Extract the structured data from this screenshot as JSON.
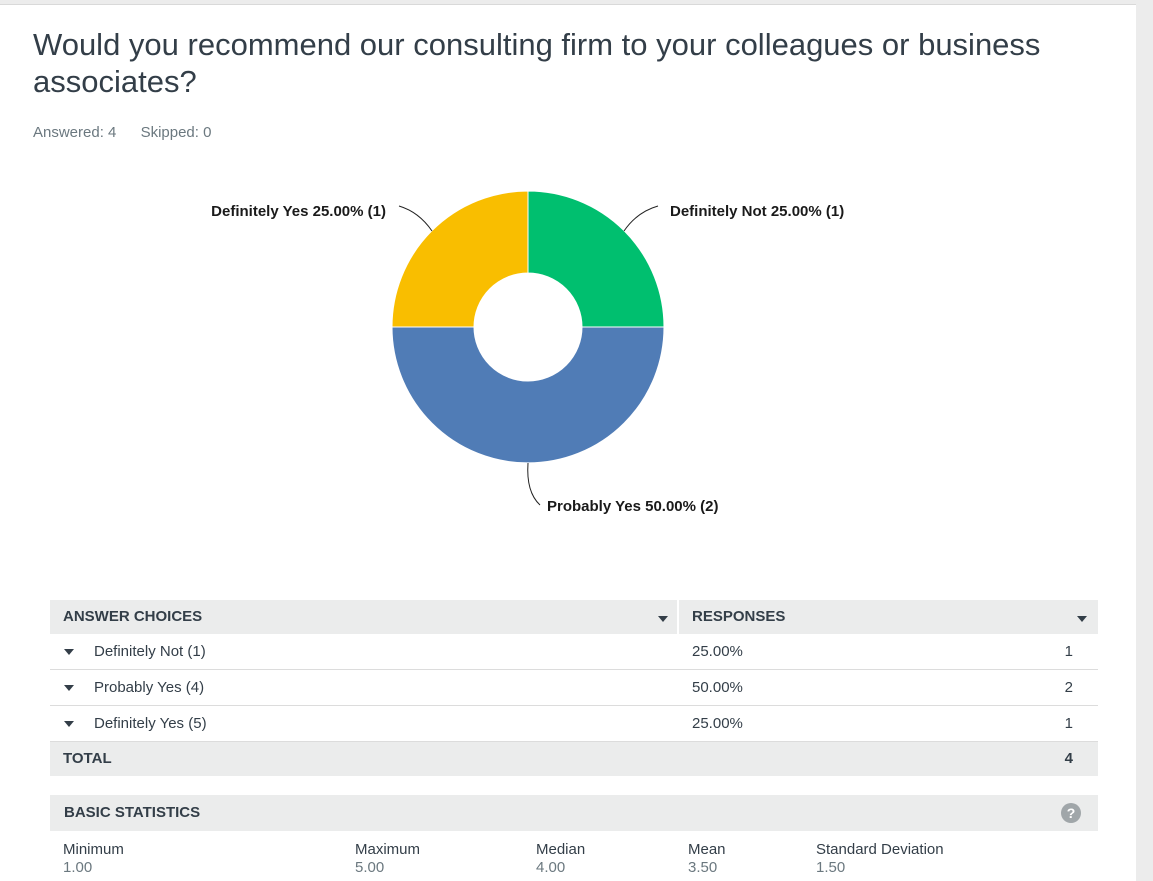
{
  "question": {
    "title": "Would you recommend our consulting firm to your colleagues or business associates?",
    "answered_label": "Answered: 4",
    "skipped_label": "Skipped: 0"
  },
  "chart_data": {
    "type": "pie",
    "donut": true,
    "slices": [
      {
        "name": "Definitely Not",
        "value": 25.0,
        "count": 1,
        "label": "Definitely Not 25.00% (1)",
        "color": "#00bf6f"
      },
      {
        "name": "Probably Yes",
        "value": 50.0,
        "count": 2,
        "label": "Probably Yes 50.00% (2)",
        "color": "#507cb6"
      },
      {
        "name": "Definitely Yes",
        "value": 25.0,
        "count": 1,
        "label": "Definitely Yes 25.00% (1)",
        "color": "#f9be00"
      }
    ]
  },
  "table": {
    "col_answer": "ANSWER CHOICES",
    "col_responses": "RESPONSES",
    "rows": [
      {
        "label": "Definitely Not (1)",
        "percent": "25.00%",
        "count": "1"
      },
      {
        "label": "Probably Yes (4)",
        "percent": "50.00%",
        "count": "2"
      },
      {
        "label": "Definitely Yes (5)",
        "percent": "25.00%",
        "count": "1"
      }
    ],
    "total_label": "TOTAL",
    "total_count": "4"
  },
  "stats": {
    "title": "BASIC STATISTICS",
    "help_glyph": "?",
    "items": [
      {
        "label": "Minimum",
        "value": "1.00"
      },
      {
        "label": "Maximum",
        "value": "5.00"
      },
      {
        "label": "Median",
        "value": "4.00"
      },
      {
        "label": "Mean",
        "value": "3.50"
      },
      {
        "label": "Standard Deviation",
        "value": "1.50"
      }
    ]
  }
}
